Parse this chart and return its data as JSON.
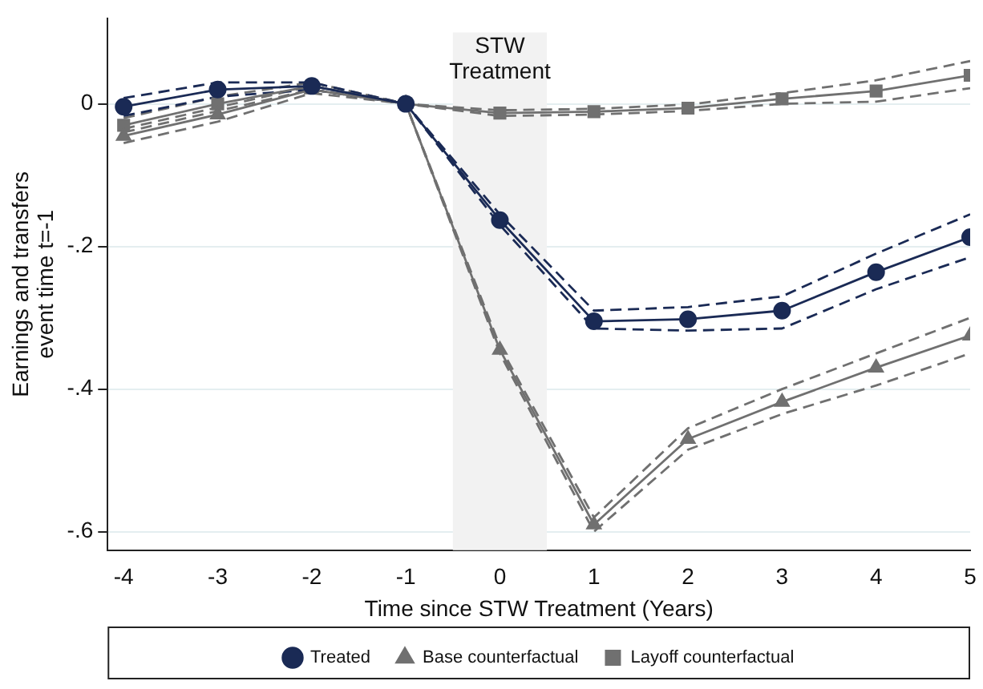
{
  "chart_data": {
    "type": "line",
    "xlabel": "Time since STW Treatment (Years)",
    "ylabel": "Earnings and transfers\nevent time t=-1",
    "x": [
      -4,
      -3,
      -2,
      -1,
      0,
      1,
      2,
      3,
      4,
      5
    ],
    "series": [
      {
        "name": "Treated",
        "color": "#1a2a55",
        "marker": "circle",
        "values": [
          -0.004,
          0.02,
          0.025,
          0,
          -0.163,
          -0.305,
          -0.302,
          -0.29,
          -0.236,
          -0.187
        ]
      },
      {
        "name": "Base counterfactual",
        "color": "#707070",
        "marker": "triangle",
        "values": [
          -0.045,
          -0.015,
          0.02,
          0,
          -0.345,
          -0.59,
          -0.47,
          -0.418,
          -0.37,
          -0.325
        ]
      },
      {
        "name": "Layoff counterfactual",
        "color": "#707070",
        "marker": "square",
        "values": [
          -0.03,
          0,
          0.025,
          0,
          -0.013,
          -0.011,
          -0.006,
          0.007,
          0.018,
          0.04
        ]
      },
      {
        "color": "#1a2a55",
        "marker": "none",
        "line_style": "dashed",
        "values": [
          -0.017,
          0.01,
          0.02,
          0,
          -0.17,
          -0.315,
          -0.318,
          -0.315,
          -0.26,
          -0.215
        ]
      },
      {
        "color": "#1a2a55",
        "marker": "none",
        "line_style": "dashed",
        "values": [
          0.008,
          0.03,
          0.03,
          0,
          -0.155,
          -0.29,
          -0.285,
          -0.27,
          -0.21,
          -0.155
        ]
      },
      {
        "color": "#707070",
        "marker": "none",
        "line_style": "dashed",
        "values": [
          -0.055,
          -0.025,
          0.015,
          0,
          -0.35,
          -0.6,
          -0.485,
          -0.435,
          -0.395,
          -0.35
        ]
      },
      {
        "color": "#707070",
        "marker": "none",
        "line_style": "dashed",
        "values": [
          -0.035,
          -0.005,
          0.025,
          0,
          -0.34,
          -0.58,
          -0.455,
          -0.4,
          -0.35,
          -0.3
        ]
      },
      {
        "color": "#707070",
        "marker": "none",
        "line_style": "dashed",
        "values": [
          -0.04,
          -0.01,
          0.02,
          0,
          -0.017,
          -0.015,
          -0.01,
          0,
          0.003,
          0.022
        ]
      },
      {
        "color": "#707070",
        "marker": "none",
        "line_style": "dashed",
        "values": [
          -0.02,
          0.01,
          0.03,
          0,
          -0.009,
          -0.007,
          -0.001,
          0.015,
          0.033,
          0.06
        ]
      }
    ],
    "xlim": [
      -4.17,
      5
    ],
    "xticks": [
      -4,
      -3,
      -2,
      -1,
      0,
      1,
      2,
      3,
      4,
      5
    ],
    "ylim": [
      -0.626,
      0.12
    ],
    "yticks": [
      {
        "value": 0,
        "label": "0"
      },
      {
        "value": -0.2,
        "label": "-.2"
      },
      {
        "value": -0.4,
        "label": "-.4"
      },
      {
        "value": -0.6,
        "label": "-.6"
      }
    ],
    "bands": [
      {
        "axis": "x",
        "from": -0.5,
        "to": 0.5,
        "label": "STW Treatment",
        "color": "#f2f2f2"
      }
    ],
    "grid": "y",
    "legend": "bottom",
    "line_style": "solid"
  }
}
